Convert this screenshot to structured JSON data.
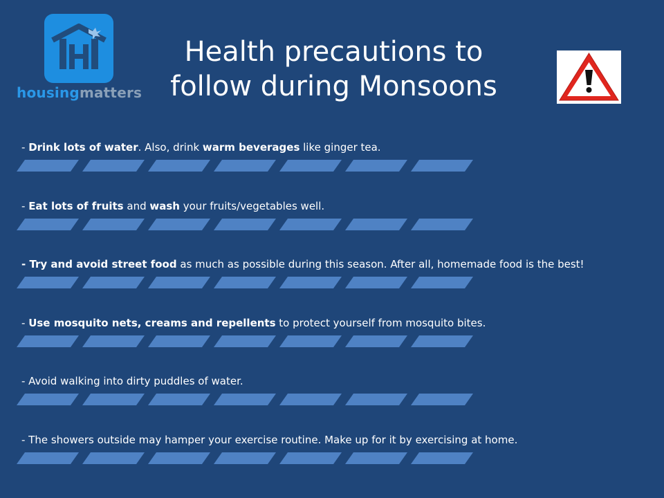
{
  "brand": {
    "name_part1": "housing",
    "name_part2": "matters",
    "tile_color": "#1e8ee0",
    "icon": "house-with-bird-logo-icon"
  },
  "title": {
    "line1": "Health precautions to",
    "line2": "follow during Monsoons"
  },
  "warning_icon": "warning-triangle-exclamation-icon",
  "colors": {
    "background": "#1f4679",
    "bar_fill": "#4f82c4",
    "warning_red": "#e0261e"
  },
  "tips": [
    {
      "segments": [
        {
          "text": "- ",
          "bold": false
        },
        {
          "text": "Drink lots of water",
          "bold": true
        },
        {
          "text": ". Also, drink ",
          "bold": false
        },
        {
          "text": "warm beverages",
          "bold": true
        },
        {
          "text": " like ginger tea.",
          "bold": false
        }
      ]
    },
    {
      "segments": [
        {
          "text": "- ",
          "bold": false
        },
        {
          "text": "Eat lots of fruits",
          "bold": true
        },
        {
          "text": " and ",
          "bold": false
        },
        {
          "text": "wash",
          "bold": true
        },
        {
          "text": " your fruits/vegetables  well.",
          "bold": false
        }
      ]
    },
    {
      "segments": [
        {
          "text": "- Try and avoid street food",
          "bold": true
        },
        {
          "text": " as much as possible during this season. After all, homemade food is the best!",
          "bold": false
        }
      ]
    },
    {
      "segments": [
        {
          "text": "- ",
          "bold": false
        },
        {
          "text": "Use mosquito nets, creams and repellents",
          "bold": true
        },
        {
          "text": " to protect yourself from mosquito bites.",
          "bold": false
        }
      ]
    },
    {
      "segments": [
        {
          "text": "- Avoid walking into dirty puddles of water.",
          "bold": false
        }
      ]
    },
    {
      "segments": [
        {
          "text": "- The showers outside may hamper your exercise routine. Make up for it by exercising at home.",
          "bold": false
        }
      ]
    }
  ]
}
